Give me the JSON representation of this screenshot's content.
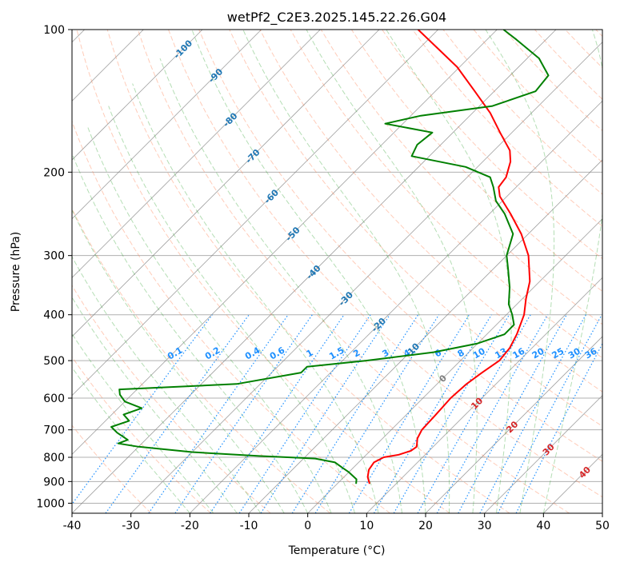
{
  "chart_data": {
    "type": "line",
    "title": "wetPf2_C2E3.2025.145.22.26.G04",
    "xlabel": "Temperature (°C)",
    "ylabel": "Pressure (hPa)",
    "xlim": [
      -40,
      50
    ],
    "ylim": [
      1050,
      100
    ],
    "y_scale": "log",
    "skew": "45-degree isotherms",
    "grid": true,
    "x_ticks": [
      "-40",
      "-30",
      "-20",
      "-10",
      "0",
      "10",
      "20",
      "30",
      "40",
      "50"
    ],
    "y_ticks": [
      "100",
      "200",
      "300",
      "400",
      "500",
      "600",
      "700",
      "800",
      "900",
      "1000"
    ],
    "series": [
      {
        "color": "#ff0000",
        "points": [
          {
            "p": 910,
            "t": 5.5
          },
          {
            "p": 880,
            "t": 4.0
          },
          {
            "p": 850,
            "t": 3.0
          },
          {
            "p": 820,
            "t": 2.6
          },
          {
            "p": 800,
            "t": 3.4
          },
          {
            "p": 790,
            "t": 5.5
          },
          {
            "p": 775,
            "t": 6.9
          },
          {
            "p": 760,
            "t": 7.2
          },
          {
            "p": 730,
            "t": 5.9
          },
          {
            "p": 700,
            "t": 5.2
          },
          {
            "p": 650,
            "t": 5.0
          },
          {
            "p": 600,
            "t": 4.7
          },
          {
            "p": 560,
            "t": 5.0
          },
          {
            "p": 530,
            "t": 5.7
          },
          {
            "p": 500,
            "t": 6.6
          },
          {
            "p": 470,
            "t": 6.2
          },
          {
            "p": 440,
            "t": 5.1
          },
          {
            "p": 400,
            "t": 3.0
          },
          {
            "p": 370,
            "t": 0.6
          },
          {
            "p": 340,
            "t": -1.7
          },
          {
            "p": 300,
            "t": -6.3
          },
          {
            "p": 270,
            "t": -11.2
          },
          {
            "p": 245,
            "t": -16.4
          },
          {
            "p": 225,
            "t": -21.2
          },
          {
            "p": 215,
            "t": -23.0
          },
          {
            "p": 205,
            "t": -23.4
          },
          {
            "p": 190,
            "t": -25.3
          },
          {
            "p": 180,
            "t": -27.3
          },
          {
            "p": 165,
            "t": -32.0
          },
          {
            "p": 150,
            "t": -37.0
          },
          {
            "p": 135,
            "t": -43.3
          },
          {
            "p": 120,
            "t": -50.4
          },
          {
            "p": 110,
            "t": -56.6
          },
          {
            "p": 100,
            "t": -63.4
          }
        ]
      },
      {
        "color": "#008000",
        "points": [
          {
            "p": 910,
            "t": 3.2
          },
          {
            "p": 890,
            "t": 2.5
          },
          {
            "p": 860,
            "t": 0.0
          },
          {
            "p": 840,
            "t": -2.0
          },
          {
            "p": 820,
            "t": -4.0
          },
          {
            "p": 805,
            "t": -8.0
          },
          {
            "p": 795,
            "t": -18.0
          },
          {
            "p": 780,
            "t": -30.0
          },
          {
            "p": 760,
            "t": -40.0
          },
          {
            "p": 748,
            "t": -44.0
          },
          {
            "p": 735,
            "t": -43.0
          },
          {
            "p": 710,
            "t": -46.0
          },
          {
            "p": 690,
            "t": -48.0
          },
          {
            "p": 670,
            "t": -46.0
          },
          {
            "p": 650,
            "t": -48.0
          },
          {
            "p": 630,
            "t": -46.0
          },
          {
            "p": 610,
            "t": -50.0
          },
          {
            "p": 590,
            "t": -52.0
          },
          {
            "p": 575,
            "t": -53.0
          },
          {
            "p": 560,
            "t": -34.0
          },
          {
            "p": 530,
            "t": -25.0
          },
          {
            "p": 515,
            "t": -25.0
          },
          {
            "p": 500,
            "t": -16.0
          },
          {
            "p": 480,
            "t": -6.0
          },
          {
            "p": 460,
            "t": 0.0
          },
          {
            "p": 440,
            "t": 3.0
          },
          {
            "p": 420,
            "t": 3.0
          },
          {
            "p": 400,
            "t": 1.0
          },
          {
            "p": 380,
            "t": -1.4
          },
          {
            "p": 350,
            "t": -4.1
          },
          {
            "p": 320,
            "t": -7.5
          },
          {
            "p": 300,
            "t": -10.0
          },
          {
            "p": 270,
            "t": -12.6
          },
          {
            "p": 245,
            "t": -17.4
          },
          {
            "p": 230,
            "t": -21.1
          },
          {
            "p": 215,
            "t": -23.9
          },
          {
            "p": 205,
            "t": -26.1
          },
          {
            "p": 195,
            "t": -32.0
          },
          {
            "p": 185,
            "t": -43.0
          },
          {
            "p": 175,
            "t": -44.0
          },
          {
            "p": 165,
            "t": -43.5
          },
          {
            "p": 158,
            "t": -53.0
          },
          {
            "p": 152,
            "t": -48.3
          },
          {
            "p": 145,
            "t": -37.8
          },
          {
            "p": 135,
            "t": -33.0
          },
          {
            "p": 125,
            "t": -33.5
          },
          {
            "p": 115,
            "t": -38.0
          },
          {
            "p": 105,
            "t": -45.0
          },
          {
            "p": 100,
            "t": -48.9
          }
        ]
      }
    ],
    "isotherm_labels": [
      {
        "text": "-100",
        "t": -100,
        "p": 110
      },
      {
        "text": "-90",
        "t": -90,
        "p": 125
      },
      {
        "text": "-80",
        "t": -80,
        "p": 155
      },
      {
        "text": "-70",
        "t": -70,
        "p": 185
      },
      {
        "text": "-60",
        "t": -60,
        "p": 225
      },
      {
        "text": "-50",
        "t": -50,
        "p": 270
      },
      {
        "text": "-40",
        "t": -40,
        "p": 325
      },
      {
        "text": "-30",
        "t": -30,
        "p": 370
      },
      {
        "text": "-20",
        "t": -20,
        "p": 420
      },
      {
        "text": "-10",
        "t": -10,
        "p": 475
      },
      {
        "text": "0",
        "t": 0,
        "p": 545
      },
      {
        "text": "10",
        "t": 10,
        "p": 615
      },
      {
        "text": "20",
        "t": 20,
        "p": 690
      },
      {
        "text": "30",
        "t": 30,
        "p": 770
      },
      {
        "text": "40",
        "t": 40,
        "p": 860
      }
    ],
    "mixing_ratio_labels": [
      "0.1",
      "0.2",
      "0.4",
      "0.6",
      "1",
      "1.5",
      "2",
      "3",
      "4",
      "6",
      "8",
      "10",
      "13",
      "16",
      "20",
      "25",
      "30",
      "36"
    ],
    "colors": {
      "temperature": "#ff0000",
      "dewpoint": "#008000",
      "isotherm_label_cold": "#1f77b4",
      "isotherm_label_warm": "#d62728",
      "isotherm_label_zero": "#7f7f7f",
      "mixing_ratio": "#1e90ff",
      "dry_adiabat": "#ff7f50",
      "moist_adiabat": "#2ca02c",
      "isotherm": "#808080"
    }
  }
}
